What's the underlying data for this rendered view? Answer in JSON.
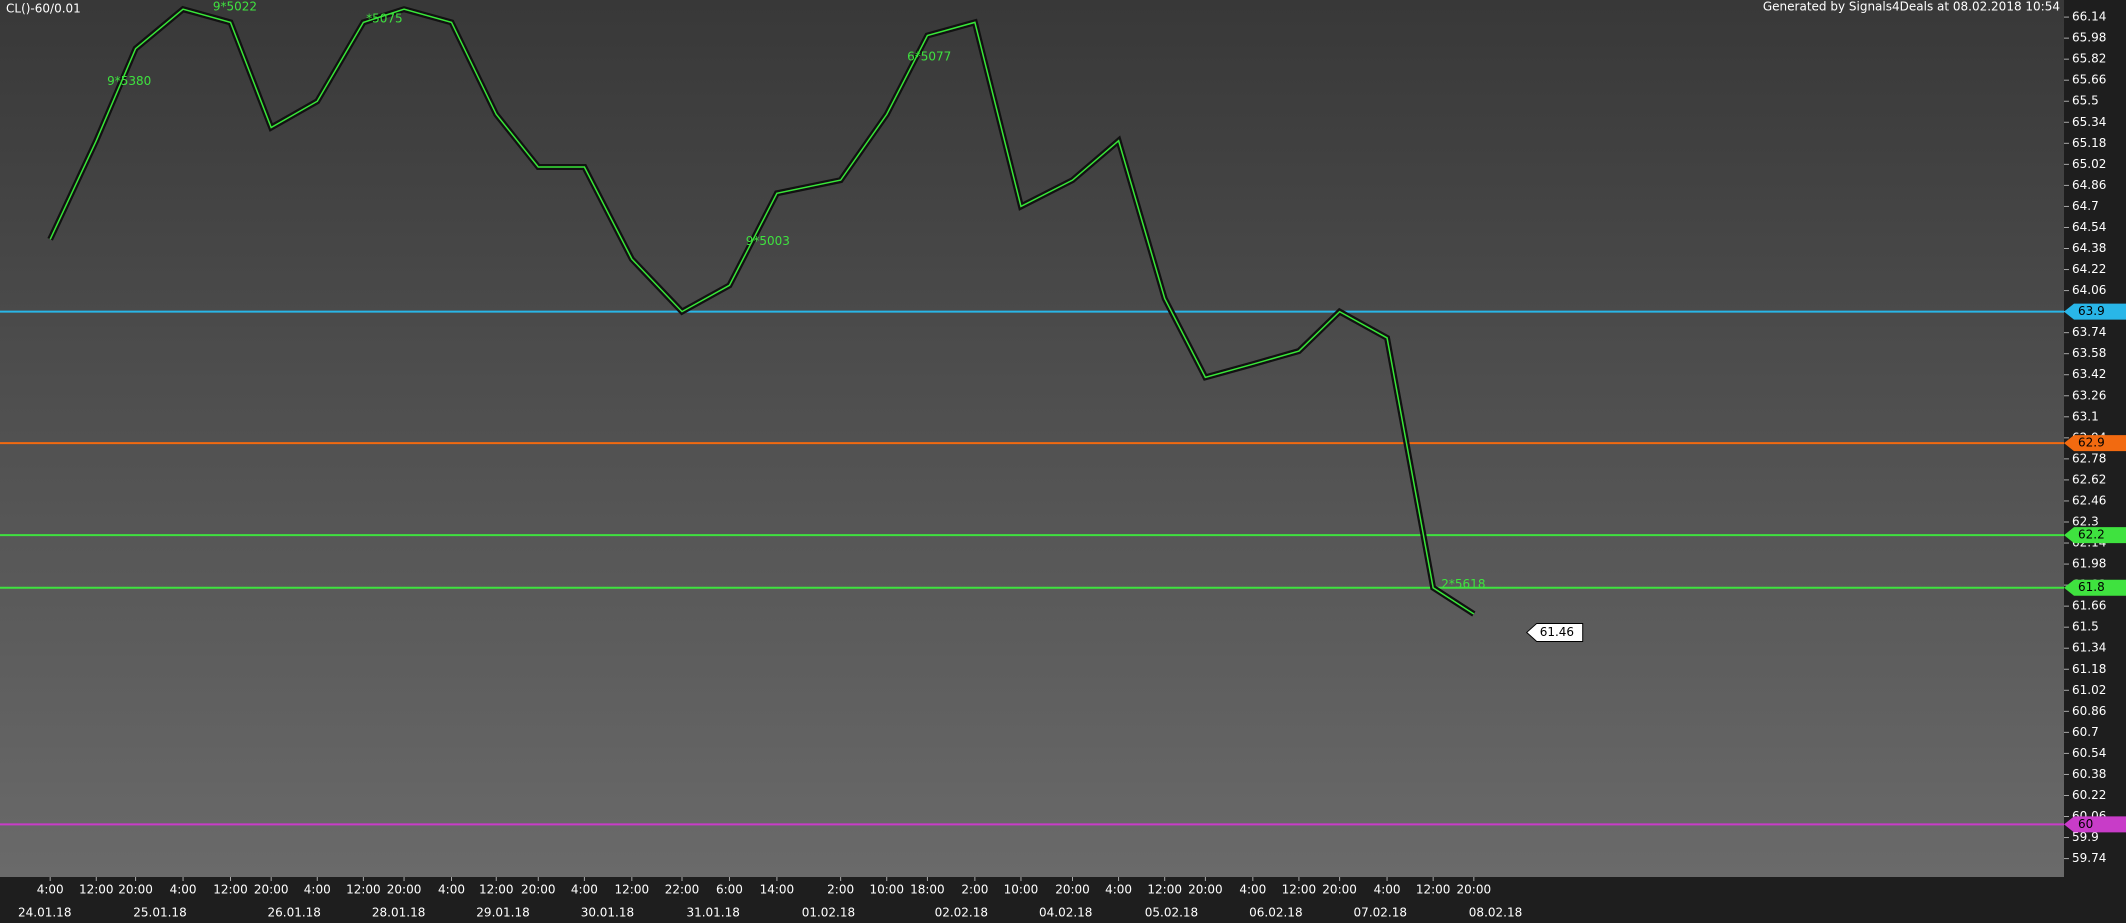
{
  "chart_data": {
    "type": "line",
    "title": "CL()-60/0.01",
    "subtitle": "Generated by Signals4Deals at 08.02.2018 10:54",
    "categories": [
      "4:00",
      "12:00",
      "20:00",
      "4:00",
      "12:00",
      "20:00",
      "4:00",
      "12:00",
      "20:00",
      "4:00",
      "12:00",
      "20:00",
      "4:00",
      "12:00",
      "22:00",
      "6:00",
      "14:00",
      "2:00",
      "10:00",
      "18:00",
      "2:00",
      "10:00",
      "20:00",
      "4:00",
      "12:00",
      "20:00",
      "4:00",
      "12:00",
      "20:00",
      "4:00",
      "12:00",
      "20:00"
    ],
    "values": [
      64.45,
      65.2,
      65.9,
      66.2,
      66.1,
      65.3,
      65.5,
      66.1,
      66.2,
      66.1,
      65.4,
      65.0,
      65.0,
      64.3,
      63.9,
      64.1,
      64.8,
      64.9,
      65.4,
      66.0,
      66.1,
      64.7,
      64.9,
      65.2,
      64.0,
      63.4,
      63.5,
      63.6,
      63.9,
      63.7,
      61.8,
      61.6
    ],
    "color": "#39e639",
    "date_labels": [
      "24.01.18",
      "25.01.18",
      "26.01.18",
      "28.01.18",
      "29.01.18",
      "30.01.18",
      "31.01.18",
      "01.02.18",
      "02.02.18",
      "04.02.18",
      "05.02.18",
      "06.02.18",
      "07.02.18",
      "08.02.18"
    ],
    "ylim": [
      59.6,
      66.27
    ],
    "yticks": [
      59.74,
      59.9,
      60.06,
      60.22,
      60.38,
      60.54,
      60.7,
      60.86,
      61.02,
      61.18,
      61.34,
      61.5,
      61.66,
      61.82,
      61.98,
      62.14,
      62.3,
      62.46,
      62.62,
      62.78,
      62.94,
      63.1,
      63.26,
      63.42,
      63.58,
      63.74,
      63.9,
      64.06,
      64.22,
      64.38,
      64.54,
      64.7,
      64.86,
      65.02,
      65.18,
      65.34,
      65.5,
      65.66,
      65.82,
      65.98,
      66.14
    ],
    "levels": [
      {
        "value": 63.9,
        "color": "#29b6e8"
      },
      {
        "value": 62.9,
        "color": "#f26a10"
      },
      {
        "value": 62.2,
        "color": "#3fe23f"
      },
      {
        "value": 61.8,
        "color": "#3fe23f"
      },
      {
        "value": 60.0,
        "color": "#c83cc8"
      }
    ],
    "last_price": 61.46,
    "annotations": [
      "9*5380",
      "6*5077",
      "9*5003",
      "2*5618",
      "*5075",
      "9*5022"
    ]
  }
}
